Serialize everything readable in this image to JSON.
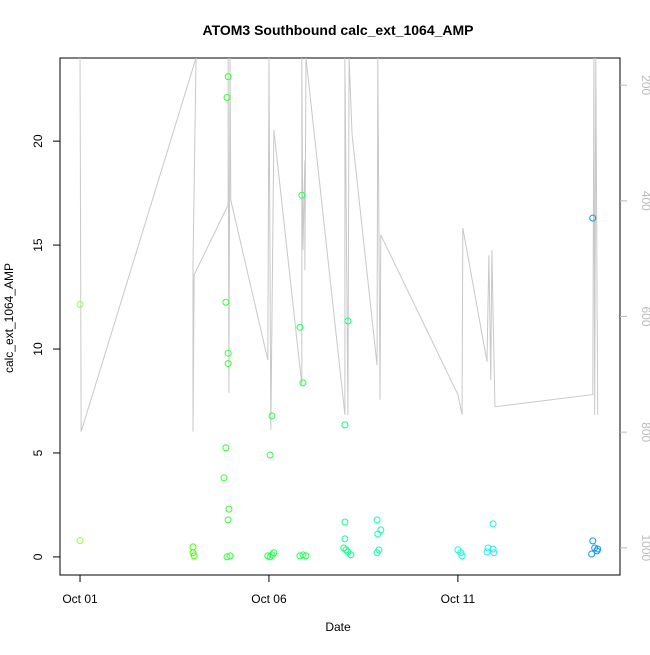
{
  "chart_data": {
    "type": "scatter",
    "title": "ATOM3 Southbound calc_ext_1064_AMP",
    "xlabel": "Date",
    "ylabel": "calc_ext_1064_AMP",
    "xlim": [
      -0.53,
      14.29
    ],
    "ylim": [
      -0.87,
      24.0
    ],
    "y2lim": [
      1047,
      153
    ],
    "xticks": [
      {
        "value": 0,
        "label": "Oct 01"
      },
      {
        "value": 5,
        "label": "Oct 06"
      },
      {
        "value": 10,
        "label": "Oct 11"
      }
    ],
    "yticks": [
      0,
      5,
      10,
      15,
      20
    ],
    "y2ticks": [
      200,
      400,
      600,
      800,
      1000
    ],
    "series": [
      {
        "type": "line",
        "axis": "y2",
        "color": "#c8c8c8",
        "x": [
          0,
          0.03,
          3.07,
          2.99,
          2.99,
          3.02,
          3.92,
          3.92,
          3.94,
          3.97,
          3.99,
          4.97,
          5.0,
          5.05,
          5.13,
          5.87,
          5.87,
          5.9,
          5.95,
          5.95,
          5.98,
          7.01,
          7.01,
          7.09,
          7.12,
          7.2,
          7.86,
          7.88,
          7.94,
          7.96,
          10.0,
          10.11,
          10.13,
          10.77,
          10.82,
          10.87,
          10.9,
          10.98,
          13.57,
          13.6,
          13.62,
          13.65,
          13.7
        ],
        "values": [
          153,
          799,
          153,
          511,
          799,
          528,
          407,
          153,
          732,
          153,
          399,
          675,
          153,
          796,
          278,
          718,
          153,
          485,
          330,
          520,
          153,
          770,
          153,
          770,
          153,
          286,
          684,
          153,
          744,
          459,
          735,
          770,
          447,
          678,
          494,
          710,
          485,
          756,
          735,
          153,
          770,
          153,
          770
        ]
      },
      {
        "type": "scatter",
        "x": [
          0,
          0,
          2.99,
          2.99,
          3.02,
          3.81,
          3.86,
          3.86,
          3.89,
          3.92,
          3.92,
          3.92,
          3.94,
          3.92,
          3.89,
          3.97,
          5.03,
          5.08,
          5.03,
          5.08,
          5.13,
          4.97,
          5.82,
          5.87,
          5.9,
          5.82,
          5.9,
          5.98,
          7.01,
          7.09,
          7.01,
          7.01,
          7.04,
          7.09,
          7.17,
          6.98,
          7.86,
          7.96,
          7.88,
          7.91,
          7.86,
          10.0,
          10.08,
          10.11,
          10.93,
          10.8,
          10.93,
          10.77,
          10.95,
          13.57,
          13.57,
          13.62,
          13.68,
          13.54,
          13.7
        ],
        "values": [
          12.15,
          0.78,
          0.48,
          0.2,
          0.05,
          3.8,
          12.25,
          5.25,
          22.1,
          23.1,
          9.8,
          9.3,
          2.3,
          1.78,
          0.0,
          0.05,
          4.9,
          6.78,
          0.0,
          0.1,
          0.2,
          0.05,
          11.05,
          17.4,
          8.37,
          0.05,
          0.1,
          0.05,
          6.35,
          11.35,
          1.68,
          0.87,
          0.34,
          0.24,
          0.1,
          0.43,
          1.78,
          1.3,
          1.1,
          0.34,
          0.2,
          0.34,
          0.2,
          0.05,
          1.59,
          0.43,
          0.38,
          0.24,
          0.2,
          16.3,
          0.77,
          0.43,
          0.29,
          0.14,
          0.38
        ],
        "colors": [
          "#99ff33",
          "#99ff33",
          "#44ff00",
          "#44ff00",
          "#44ff00",
          "#33ff33",
          "#33ff33",
          "#33ff33",
          "#33ff33",
          "#33ff33",
          "#33ff33",
          "#33ff33",
          "#33ff33",
          "#33ff33",
          "#33ff33",
          "#33ff33",
          "#22ff44",
          "#22ff44",
          "#22ff44",
          "#22ff44",
          "#22ff44",
          "#22ff44",
          "#22ff55",
          "#22ff55",
          "#22ff55",
          "#22ff55",
          "#22ff55",
          "#22ff55",
          "#11ff88",
          "#11ff88",
          "#11ff88",
          "#11ff88",
          "#11ff88",
          "#11ff88",
          "#11ff88",
          "#11ff88",
          "#11ffaa",
          "#11ffaa",
          "#11ffaa",
          "#11ffaa",
          "#11ffaa",
          "#11ffdd",
          "#11ffdd",
          "#11ffdd",
          "#22eeee",
          "#22eeee",
          "#22eeee",
          "#22eeee",
          "#22eeee",
          "#1199ee",
          "#1199ee",
          "#1199ee",
          "#1199ee",
          "#1199ee",
          "#1199ee"
        ]
      }
    ]
  }
}
